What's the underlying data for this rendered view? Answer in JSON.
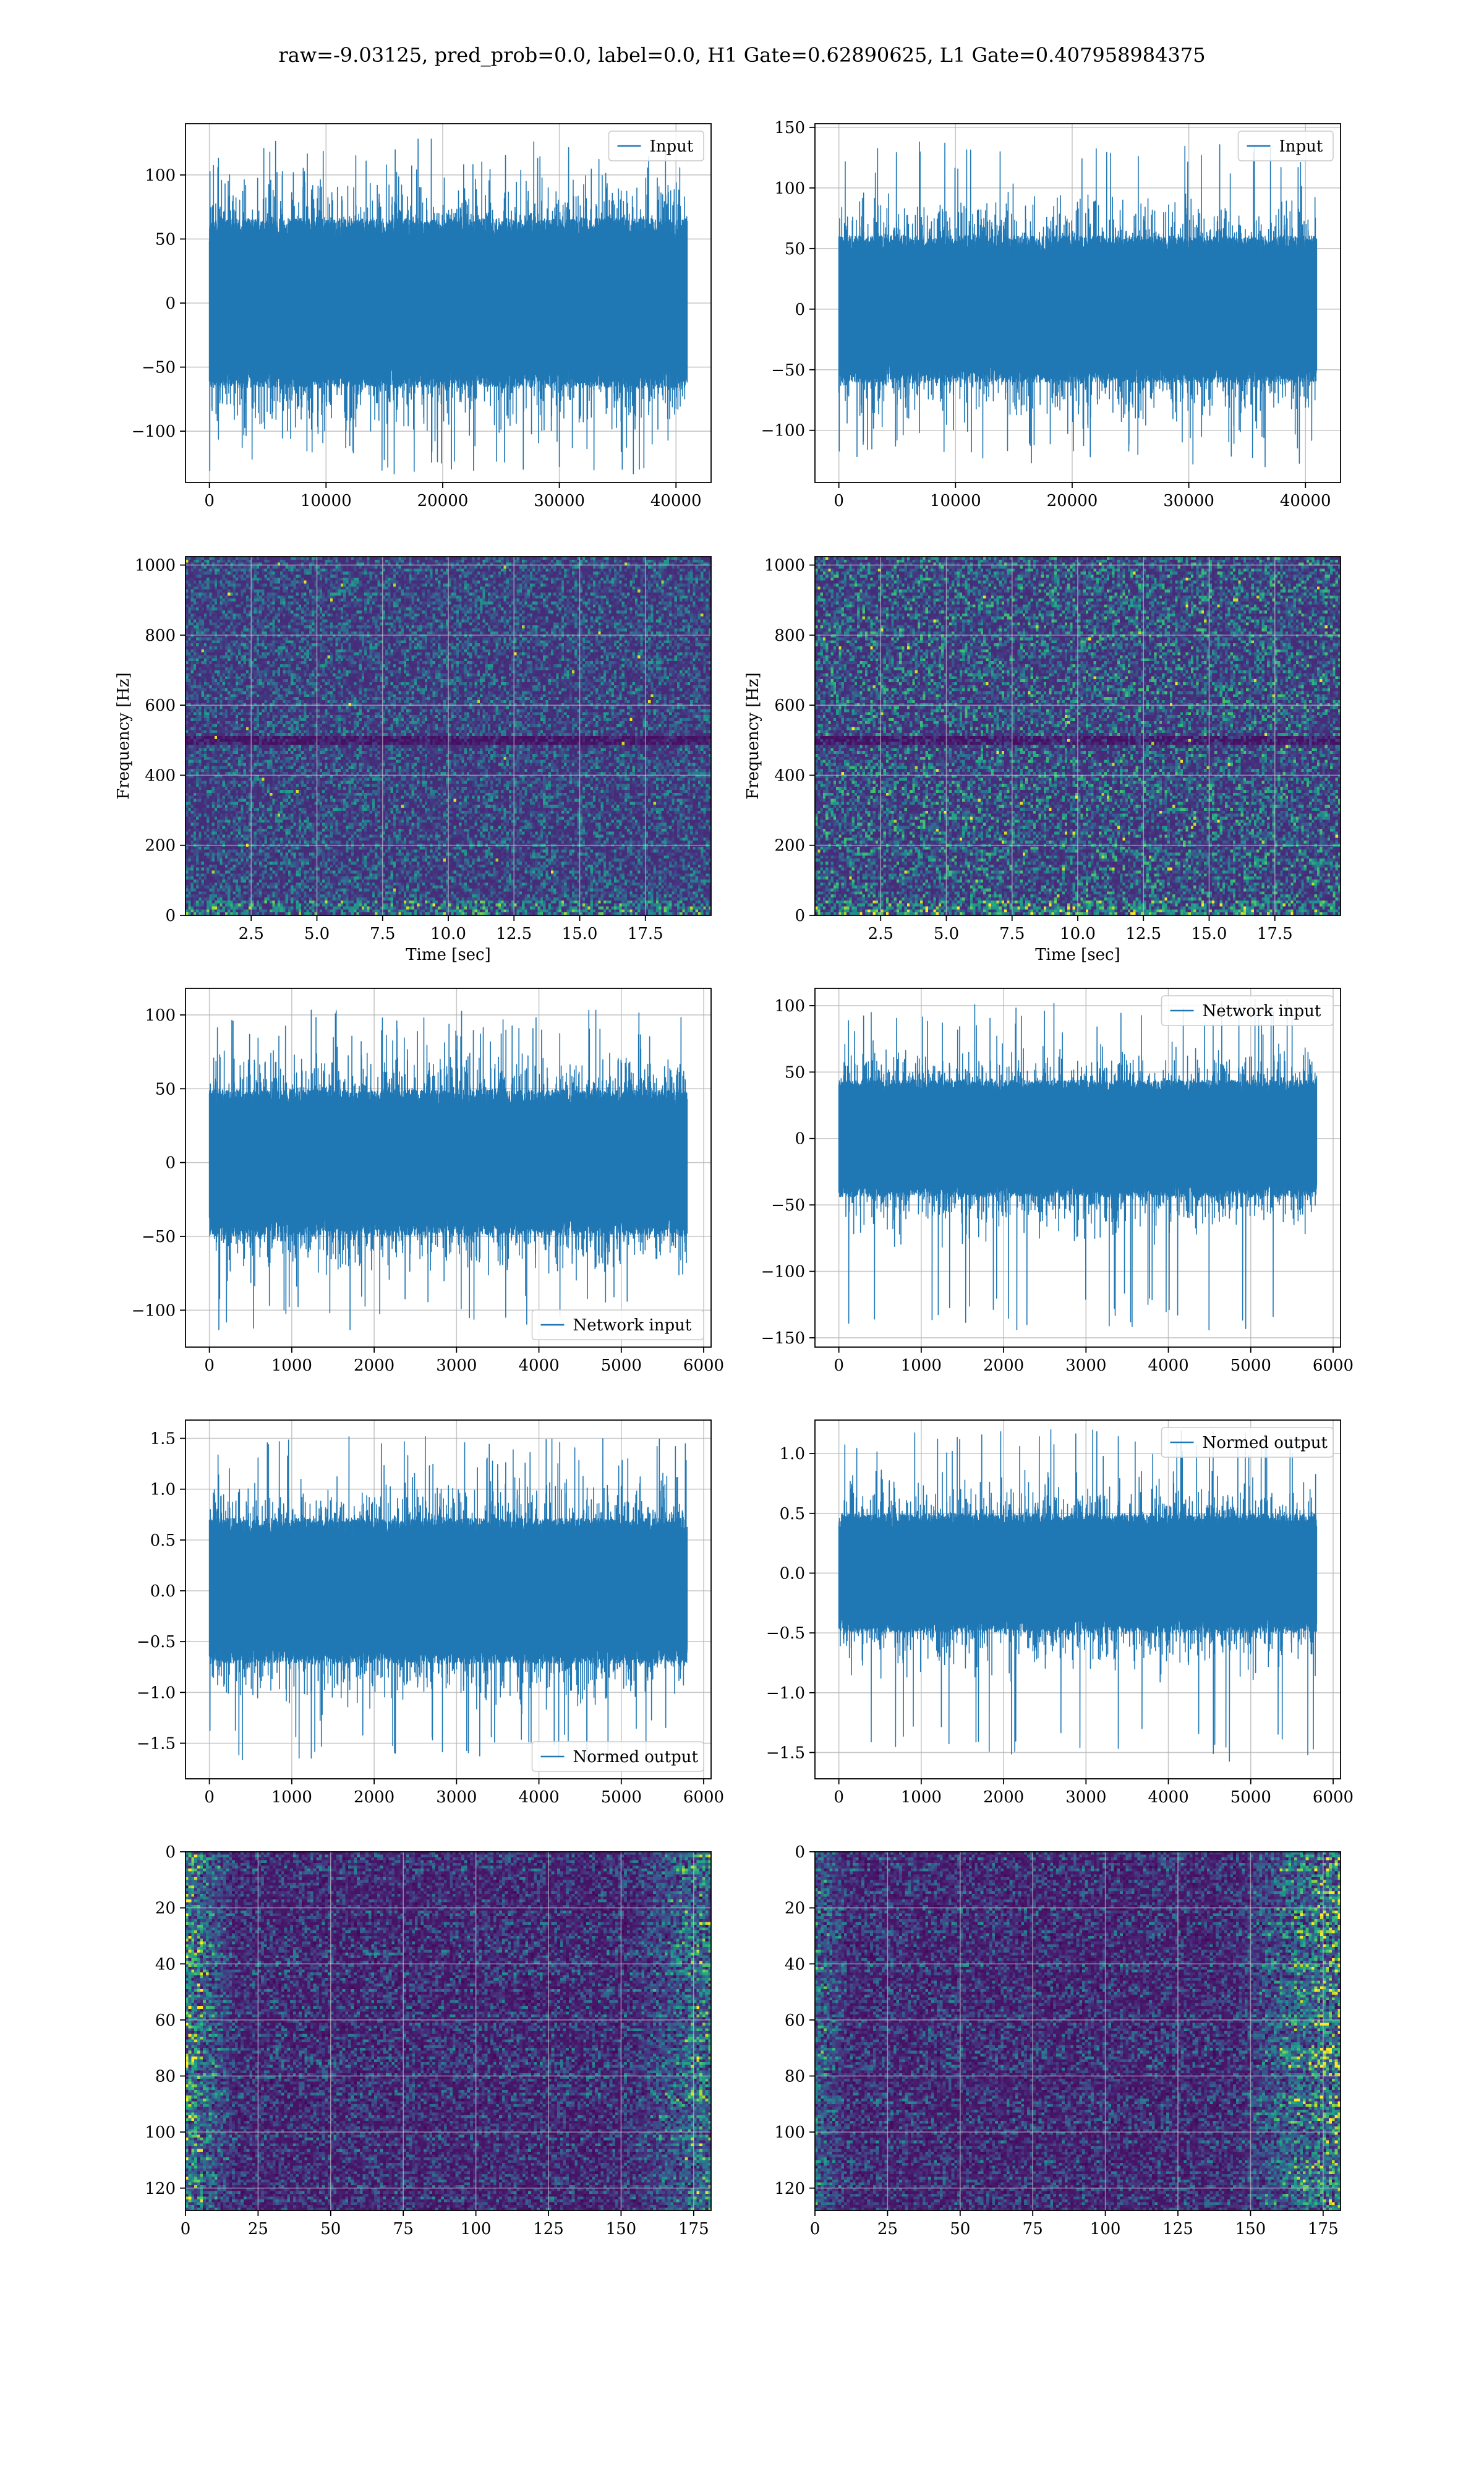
{
  "figure": {
    "suptitle": "raw=-9.03125, pred_prob=0.0, label=0.0, H1 Gate=0.62890625, L1 Gate=0.407958984375",
    "colors": {
      "line": "#1f77b4",
      "grid": "#b0b0b0",
      "spine": "#000000",
      "viridis_dark": "#440154",
      "viridis_mid": "#3b528b",
      "viridis_teal": "#21918c",
      "viridis_green": "#5ec962",
      "viridis_yellow": "#fde725"
    }
  },
  "chart_data": [
    {
      "id": "h1-input",
      "type": "line",
      "title": "",
      "xlabel": "",
      "ylabel": "",
      "series": [
        {
          "name": "Input",
          "description": "noise strain, ~40960 samples"
        }
      ],
      "legend_position": "upper right",
      "xlim": [
        -2048,
        43008
      ],
      "ylim": [
        -140,
        140
      ],
      "xticks": [
        0,
        10000,
        20000,
        30000,
        40000
      ],
      "xtick_labels": [
        "0",
        "10000",
        "20000",
        "30000",
        "40000"
      ],
      "yticks": [
        -100,
        -50,
        0,
        50,
        100
      ],
      "ytick_labels": [
        "−100",
        "−50",
        "0",
        "50",
        "100"
      ],
      "n_samples": 40960,
      "envelope": {
        "core": 60,
        "peak_max": 128,
        "peak_min": -134
      },
      "grid": true
    },
    {
      "id": "l1-input",
      "type": "line",
      "title": "",
      "xlabel": "",
      "ylabel": "",
      "series": [
        {
          "name": "Input",
          "description": "noise strain, ~40960 samples"
        }
      ],
      "legend_position": "upper right",
      "xlim": [
        -2048,
        43008
      ],
      "ylim": [
        -143,
        153
      ],
      "xticks": [
        0,
        10000,
        20000,
        30000,
        40000
      ],
      "xtick_labels": [
        "0",
        "10000",
        "20000",
        "30000",
        "40000"
      ],
      "yticks": [
        -100,
        -50,
        0,
        50,
        100,
        150
      ],
      "ytick_labels": [
        "−100",
        "−50",
        "0",
        "50",
        "100",
        "150"
      ],
      "n_samples": 40960,
      "envelope": {
        "core": 55,
        "peak_max": 138,
        "peak_min": -131
      },
      "grid": true
    },
    {
      "id": "h1-spectrogram",
      "type": "heatmap",
      "title": "",
      "xlabel": "Time [sec]",
      "ylabel": "Frequency [Hz]",
      "xlim": [
        0,
        20
      ],
      "ylim": [
        0,
        1024
      ],
      "xticks": [
        2.5,
        5.0,
        7.5,
        10.0,
        12.5,
        15.0,
        17.5
      ],
      "xtick_labels": [
        "2.5",
        "5.0",
        "7.5",
        "10.0",
        "12.5",
        "15.0",
        "17.5"
      ],
      "yticks": [
        0,
        200,
        400,
        600,
        800,
        1000
      ],
      "ytick_labels": [
        "0",
        "200",
        "400",
        "600",
        "800",
        "1000"
      ],
      "colormap": "viridis",
      "features": "faint noise with dark band near 500 Hz and brighter spots near 40 Hz",
      "grid": true
    },
    {
      "id": "l1-spectrogram",
      "type": "heatmap",
      "title": "",
      "xlabel": "Time [sec]",
      "ylabel": "Frequency [Hz]",
      "xlim": [
        0,
        20
      ],
      "ylim": [
        0,
        1024
      ],
      "xticks": [
        2.5,
        5.0,
        7.5,
        10.0,
        12.5,
        15.0,
        17.5
      ],
      "xtick_labels": [
        "2.5",
        "5.0",
        "7.5",
        "10.0",
        "12.5",
        "15.0",
        "17.5"
      ],
      "yticks": [
        0,
        200,
        400,
        600,
        800,
        1000
      ],
      "ytick_labels": [
        "0",
        "200",
        "400",
        "600",
        "800",
        "1000"
      ],
      "colormap": "viridis",
      "features": "noisier texture with scattered bright points, dark band near 500 Hz",
      "grid": true
    },
    {
      "id": "h1-network-input",
      "type": "line",
      "title": "",
      "xlabel": "",
      "ylabel": "",
      "series": [
        {
          "name": "Network input",
          "description": "whitened, decimated strain, ~5800 samples"
        }
      ],
      "legend_position": "lower right",
      "xlim": [
        -290,
        6090
      ],
      "ylim": [
        -125,
        118
      ],
      "xticks": [
        0,
        1000,
        2000,
        3000,
        4000,
        5000,
        6000
      ],
      "xtick_labels": [
        "0",
        "1000",
        "2000",
        "3000",
        "4000",
        "5000",
        "6000"
      ],
      "yticks": [
        -100,
        -50,
        0,
        50,
        100
      ],
      "ytick_labels": [
        "−100",
        "−50",
        "0",
        "50",
        "100"
      ],
      "n_samples": 5800,
      "envelope": {
        "core": 45,
        "peak_max": 105,
        "peak_min": -115
      },
      "grid": true
    },
    {
      "id": "l1-network-input",
      "type": "line",
      "title": "",
      "xlabel": "",
      "ylabel": "",
      "series": [
        {
          "name": "Network input",
          "description": "whitened, decimated strain, ~5800 samples"
        }
      ],
      "legend_position": "upper right",
      "xlim": [
        -290,
        6090
      ],
      "ylim": [
        -157,
        113
      ],
      "xticks": [
        0,
        1000,
        2000,
        3000,
        4000,
        5000,
        6000
      ],
      "xtick_labels": [
        "0",
        "1000",
        "2000",
        "3000",
        "4000",
        "5000",
        "6000"
      ],
      "yticks": [
        -150,
        -100,
        -50,
        0,
        50,
        100
      ],
      "ytick_labels": [
        "−150",
        "−100",
        "−50",
        "0",
        "50",
        "100"
      ],
      "n_samples": 5800,
      "envelope": {
        "core": 40,
        "peak_max": 105,
        "peak_min": -145
      },
      "grid": true
    },
    {
      "id": "h1-normed-output",
      "type": "line",
      "title": "",
      "xlabel": "",
      "ylabel": "",
      "series": [
        {
          "name": "Normed output",
          "description": "normalised network input, ~5800 samples"
        }
      ],
      "legend_position": "lower right",
      "xlim": [
        -290,
        6090
      ],
      "ylim": [
        -1.85,
        1.68
      ],
      "xticks": [
        0,
        1000,
        2000,
        3000,
        4000,
        5000,
        6000
      ],
      "xtick_labels": [
        "0",
        "1000",
        "2000",
        "3000",
        "4000",
        "5000",
        "6000"
      ],
      "yticks": [
        -1.5,
        -1.0,
        -0.5,
        0.0,
        0.5,
        1.0,
        1.5
      ],
      "ytick_labels": [
        "−1.5",
        "−1.0",
        "−0.5",
        "0.0",
        "0.5",
        "1.0",
        "1.5"
      ],
      "n_samples": 5800,
      "envelope": {
        "core": 0.65,
        "peak_max": 1.53,
        "peak_min": -1.7
      },
      "grid": true
    },
    {
      "id": "l1-normed-output",
      "type": "line",
      "title": "",
      "xlabel": "",
      "ylabel": "",
      "series": [
        {
          "name": "Normed output",
          "description": "normalised network input, ~5800 samples"
        }
      ],
      "legend_position": "upper right",
      "xlim": [
        -290,
        6090
      ],
      "ylim": [
        -1.72,
        1.28
      ],
      "xticks": [
        0,
        1000,
        2000,
        3000,
        4000,
        5000,
        6000
      ],
      "xtick_labels": [
        "0",
        "1000",
        "2000",
        "3000",
        "4000",
        "5000",
        "6000"
      ],
      "yticks": [
        -1.5,
        -1.0,
        -0.5,
        0.0,
        0.5,
        1.0
      ],
      "ytick_labels": [
        "−1.5",
        "−1.0",
        "−0.5",
        "0.0",
        "0.5",
        "1.0"
      ],
      "n_samples": 5800,
      "envelope": {
        "core": 0.45,
        "peak_max": 1.2,
        "peak_min": -1.58
      },
      "grid": true
    },
    {
      "id": "h1-feature-map",
      "type": "heatmap",
      "title": "",
      "xlabel": "",
      "ylabel": "",
      "xlim": [
        0,
        181
      ],
      "ylim": [
        128,
        0
      ],
      "xticks": [
        0,
        25,
        50,
        75,
        100,
        125,
        150,
        175
      ],
      "xtick_labels": [
        "0",
        "25",
        "50",
        "75",
        "100",
        "125",
        "150",
        "175"
      ],
      "yticks": [
        0,
        20,
        40,
        60,
        80,
        100,
        120
      ],
      "ytick_labels": [
        "0",
        "20",
        "40",
        "60",
        "80",
        "100",
        "120"
      ],
      "rows": 128,
      "cols": 181,
      "colormap": "viridis",
      "features": "horizontal banding, bright activations near left and right edges",
      "grid": true
    },
    {
      "id": "l1-feature-map",
      "type": "heatmap",
      "title": "",
      "xlabel": "",
      "ylabel": "",
      "xlim": [
        0,
        181
      ],
      "ylim": [
        128,
        0
      ],
      "xticks": [
        0,
        25,
        50,
        75,
        100,
        125,
        150,
        175
      ],
      "xtick_labels": [
        "0",
        "25",
        "50",
        "75",
        "100",
        "125",
        "150",
        "175"
      ],
      "yticks": [
        0,
        20,
        40,
        60,
        80,
        100,
        120
      ],
      "ytick_labels": [
        "0",
        "20",
        "40",
        "60",
        "80",
        "100",
        "120"
      ],
      "rows": 128,
      "cols": 181,
      "colormap": "viridis",
      "features": "horizontal banding, bright activations concentrated at right edge",
      "grid": true
    }
  ]
}
